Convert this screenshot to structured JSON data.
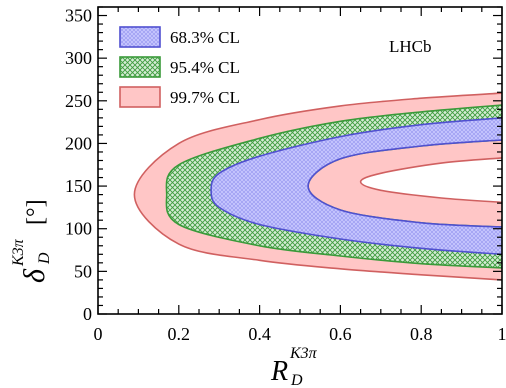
{
  "chart_data": {
    "type": "contour",
    "xlabel": {
      "base": "R",
      "sup": "K3π",
      "sub": "D"
    },
    "ylabel": {
      "base": "δ",
      "sup": "K3π",
      "sub": "D",
      "unit": "[°]"
    },
    "xlim": [
      0,
      1
    ],
    "ylim": [
      0,
      360
    ],
    "xticks": [
      "0",
      "0.2",
      "0.4",
      "0.6",
      "0.8",
      "1"
    ],
    "yticks": [
      "0",
      "50",
      "100",
      "150",
      "200",
      "250",
      "300",
      "350"
    ],
    "annotation": "LHCb",
    "legend_position": "top-left",
    "series": [
      {
        "name": "99.7% CL",
        "fill": "#ffc6c6",
        "stroke": "#d06060",
        "hatch": false,
        "outer": [
          [
            1.0,
            259
          ],
          [
            0.8,
            253
          ],
          [
            0.6,
            244
          ],
          [
            0.4,
            228
          ],
          [
            0.2,
            200
          ],
          [
            0.09,
            140
          ],
          [
            0.2,
            82
          ],
          [
            0.4,
            63
          ],
          [
            0.6,
            53
          ],
          [
            0.8,
            46
          ],
          [
            1.0,
            40
          ]
        ],
        "inner": [
          [
            1.0,
            183
          ],
          [
            0.85,
            177
          ],
          [
            0.7,
            165
          ],
          [
            0.65,
            155
          ],
          [
            0.7,
            145
          ],
          [
            0.85,
            136
          ],
          [
            1.0,
            131
          ]
        ]
      },
      {
        "name": "95.4% CL",
        "fill": "#dcefdc",
        "stroke": "#3a9a3a",
        "hatch": true,
        "outer": [
          [
            1.0,
            245
          ],
          [
            0.8,
            237
          ],
          [
            0.6,
            226
          ],
          [
            0.4,
            206
          ],
          [
            0.2,
            175
          ],
          [
            0.17,
            140
          ],
          [
            0.2,
            105
          ],
          [
            0.4,
            80
          ],
          [
            0.6,
            68
          ],
          [
            0.8,
            59
          ],
          [
            1.0,
            54
          ]
        ],
        "inner": [
          [
            1.0,
            204
          ],
          [
            0.8,
            197
          ],
          [
            0.6,
            182
          ],
          [
            0.52,
            150
          ],
          [
            0.6,
            122
          ],
          [
            0.8,
            107
          ],
          [
            1.0,
            102
          ]
        ]
      },
      {
        "name": "68.3% CL",
        "fill": "#c4c4ff",
        "stroke": "#5050d0",
        "hatch": true,
        "outer": [
          [
            1.0,
            230
          ],
          [
            0.8,
            222
          ],
          [
            0.6,
            208
          ],
          [
            0.4,
            185
          ],
          [
            0.3,
            165
          ],
          [
            0.28,
            145
          ],
          [
            0.3,
            125
          ],
          [
            0.4,
            105
          ],
          [
            0.6,
            88
          ],
          [
            0.8,
            77
          ],
          [
            1.0,
            70
          ]
        ],
        "inner": [
          [
            1.0,
            204
          ],
          [
            0.8,
            197
          ],
          [
            0.6,
            182
          ],
          [
            0.52,
            150
          ],
          [
            0.6,
            122
          ],
          [
            0.8,
            107
          ],
          [
            1.0,
            102
          ]
        ]
      }
    ]
  }
}
